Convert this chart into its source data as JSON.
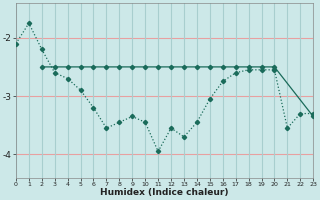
{
  "xlabel": "Humidex (Indice chaleur)",
  "background_color": "#cce8e8",
  "grid_color_h": "#e8a0a0",
  "grid_color_v": "#a8cece",
  "line_color": "#1a6b5a",
  "x_values": [
    0,
    1,
    2,
    3,
    4,
    5,
    6,
    7,
    8,
    9,
    10,
    11,
    12,
    13,
    14,
    15,
    16,
    17,
    18,
    19,
    20,
    21,
    22,
    23
  ],
  "series1": [
    -2.1,
    -1.75,
    -2.2,
    -2.6,
    -2.7,
    -2.9,
    -3.2,
    -3.55,
    -3.45,
    -3.35,
    -3.45,
    -3.95,
    -3.55,
    -3.7,
    -3.45,
    -3.05,
    -2.75,
    -2.6,
    -2.55,
    -2.55,
    -2.55,
    -3.55,
    -3.3,
    -3.3
  ],
  "series2_x": [
    2,
    3,
    4,
    5,
    6,
    7,
    8,
    9,
    10,
    11,
    12,
    13,
    14,
    15,
    16,
    17,
    18,
    19,
    20,
    23
  ],
  "series2_y": [
    -2.5,
    -2.5,
    -2.5,
    -2.5,
    -2.5,
    -2.5,
    -2.5,
    -2.5,
    -2.5,
    -2.5,
    -2.5,
    -2.5,
    -2.5,
    -2.5,
    -2.5,
    -2.5,
    -2.5,
    -2.5,
    -2.5,
    -3.35
  ],
  "ylim": [
    -4.4,
    -1.4
  ],
  "yticks": [
    -4,
    -3,
    -2
  ],
  "xlim": [
    0,
    23
  ]
}
